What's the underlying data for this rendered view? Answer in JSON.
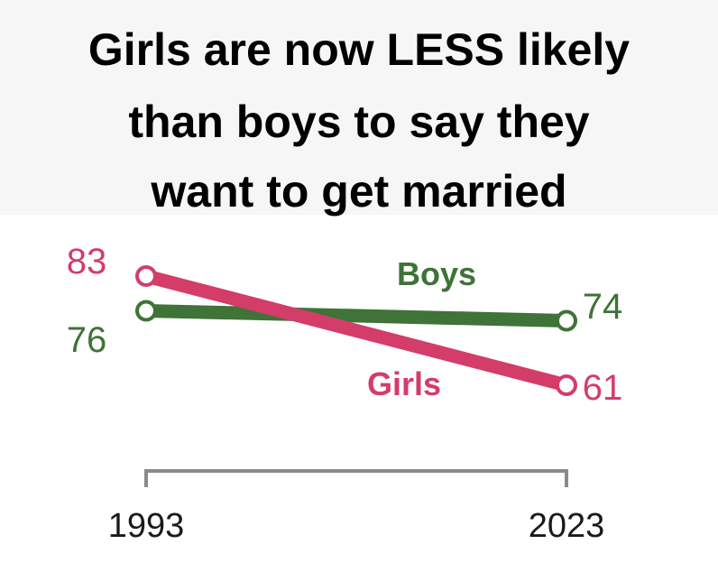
{
  "title_lines": [
    "Girls are now LESS likely",
    "than boys to say they",
    "want to get married"
  ],
  "chart_data": {
    "type": "line",
    "title": "Girls are now LESS likely than boys to say they want to get married",
    "x": [
      "1993",
      "2023"
    ],
    "ylim": [
      55,
      90
    ],
    "grid": false,
    "series": [
      {
        "name": "Boys",
        "values": [
          76,
          74
        ],
        "color": "#3f7338",
        "value_labels": [
          "76",
          "74"
        ]
      },
      {
        "name": "Girls",
        "values": [
          83,
          61
        ],
        "color": "#d43c6a",
        "value_labels": [
          "83",
          "61"
        ]
      }
    ],
    "axis_color": "#8a8a8a",
    "tick_color": "#1a1a1a"
  }
}
